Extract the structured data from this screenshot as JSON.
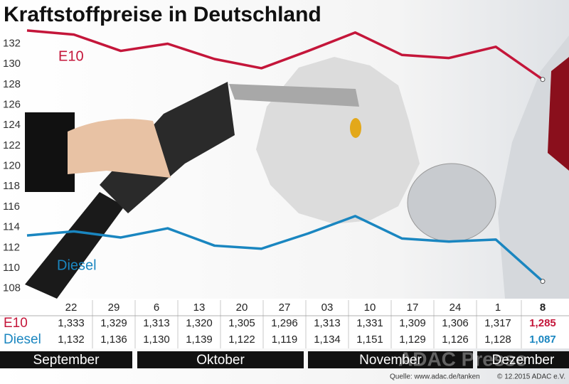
{
  "chart_data": {
    "type": "line",
    "title": "Kraftstoffpreise in Deutschland",
    "categories": [
      "22",
      "29",
      "6",
      "13",
      "20",
      "27",
      "03",
      "10",
      "17",
      "24",
      "1",
      "8"
    ],
    "months": [
      "September",
      "Oktober",
      "November",
      "Dezember"
    ],
    "series": [
      {
        "name": "E10",
        "color": "#c4163a",
        "values": [
          133.3,
          132.9,
          131.3,
          132.0,
          130.5,
          129.6,
          131.3,
          133.1,
          130.9,
          130.6,
          131.7,
          128.5
        ],
        "value_labels": [
          "1,333",
          "1,329",
          "1,313",
          "1,320",
          "1,305",
          "1,296",
          "1,313",
          "1,331",
          "1,309",
          "1,306",
          "1,317",
          "1,285"
        ]
      },
      {
        "name": "Diesel",
        "color": "#1a86c0",
        "values": [
          113.2,
          113.6,
          113.0,
          113.9,
          112.2,
          111.9,
          113.4,
          115.1,
          112.9,
          112.6,
          112.8,
          108.7
        ],
        "value_labels": [
          "1,132",
          "1,136",
          "1,130",
          "1,139",
          "1,122",
          "1,119",
          "1,134",
          "1,151",
          "1,129",
          "1,126",
          "1,128",
          "1,087"
        ]
      }
    ],
    "ylim": [
      107,
      133.5
    ],
    "yticks": [
      108,
      110,
      112,
      114,
      116,
      118,
      120,
      122,
      124,
      126,
      128,
      130,
      132
    ],
    "grid": false,
    "source": "Quelle: www.adac.de/tanken",
    "copyright": "© 12.2015  ADAC e.V.",
    "watermark": "ADAC Presse"
  }
}
